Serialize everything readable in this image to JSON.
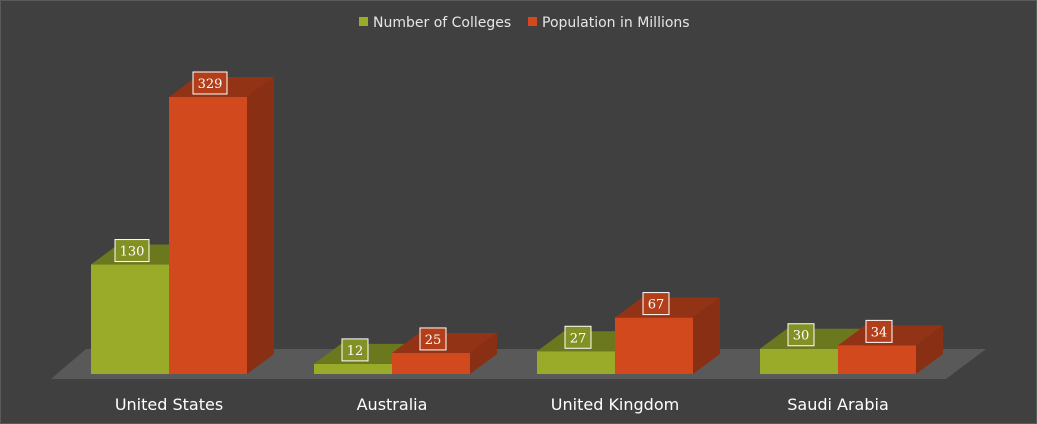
{
  "chart_data": {
    "type": "bar",
    "style": "3d-clustered-column",
    "categories": [
      "United States",
      "Australia",
      "United Kingdom",
      "Saudi Arabia"
    ],
    "series": [
      {
        "name": "Number of Colleges",
        "values": [
          130,
          12,
          27,
          30
        ],
        "color": "#9aab2a"
      },
      {
        "name": "Population in Millions",
        "values": [
          329,
          25,
          67,
          34
        ],
        "color": "#d2491e"
      }
    ],
    "legend_position": "top-center",
    "background_color": "#404040",
    "floor_color": "#595959",
    "data_labels": true,
    "grid": false
  }
}
